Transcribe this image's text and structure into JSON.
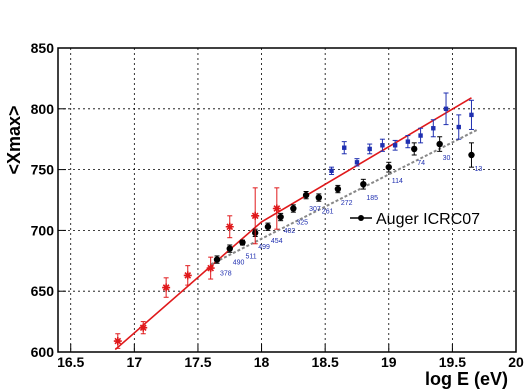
{
  "chart_data": {
    "type": "scatter",
    "xlabel": "log E (eV)",
    "ylabel": "<Xmax>",
    "xlim": [
      16.4,
      20.0
    ],
    "ylim": [
      600,
      850
    ],
    "x_ticks": [
      "16.5",
      "17",
      "17.5",
      "18",
      "18.5",
      "19",
      "19.5",
      "20"
    ],
    "y_ticks": [
      "600",
      "650",
      "700",
      "750",
      "800",
      "850"
    ],
    "grid": true,
    "legend_placement": "right",
    "colors": {
      "red": "#e0191b",
      "black": "#000000",
      "blue": "#1f2fb0",
      "grey": "#888888"
    },
    "series": [
      {
        "name": "Auger ICRC07",
        "color": "#000000",
        "marker": "circle",
        "legend": true,
        "points": [
          {
            "x": 17.65,
            "y": 676,
            "err": 3,
            "n": "378"
          },
          {
            "x": 17.75,
            "y": 685,
            "err": 3,
            "n": "490"
          },
          {
            "x": 17.85,
            "y": 690,
            "err": 2,
            "n": "511"
          },
          {
            "x": 17.95,
            "y": 698,
            "err": 3,
            "n": "499"
          },
          {
            "x": 18.05,
            "y": 703,
            "err": 3,
            "n": "454"
          },
          {
            "x": 18.15,
            "y": 711,
            "err": 3,
            "n": "402"
          },
          {
            "x": 18.25,
            "y": 718,
            "err": 3,
            "n": "325"
          },
          {
            "x": 18.35,
            "y": 729,
            "err": 3,
            "n": "307"
          },
          {
            "x": 18.45,
            "y": 727,
            "err": 3,
            "n": "261"
          },
          {
            "x": 18.6,
            "y": 734,
            "err": 3,
            "n": "272"
          },
          {
            "x": 18.8,
            "y": 738,
            "err": 4,
            "n": "185"
          },
          {
            "x": 19.0,
            "y": 752,
            "err": 4,
            "n": "114"
          },
          {
            "x": 19.2,
            "y": 767,
            "err": 5,
            "n": "74"
          },
          {
            "x": 19.4,
            "y": 771,
            "err": 6,
            "n": "30"
          },
          {
            "x": 19.65,
            "y": 762,
            "err": 10,
            "n": "13"
          }
        ]
      },
      {
        "name": "",
        "color": "#1f2fb0",
        "marker": "square",
        "legend": false,
        "points": [
          {
            "x": 18.55,
            "y": 749,
            "err": 3
          },
          {
            "x": 18.65,
            "y": 768,
            "err": 5
          },
          {
            "x": 18.75,
            "y": 756,
            "err": 3
          },
          {
            "x": 18.85,
            "y": 767,
            "err": 4
          },
          {
            "x": 18.95,
            "y": 770,
            "err": 5
          },
          {
            "x": 19.05,
            "y": 770,
            "err": 4
          },
          {
            "x": 19.15,
            "y": 773,
            "err": 5
          },
          {
            "x": 19.25,
            "y": 778,
            "err": 6
          },
          {
            "x": 19.35,
            "y": 784,
            "err": 7
          },
          {
            "x": 19.45,
            "y": 800,
            "err": 13
          },
          {
            "x": 19.55,
            "y": 785,
            "err": 10
          },
          {
            "x": 19.65,
            "y": 795,
            "err": 12
          }
        ]
      },
      {
        "name": "",
        "color": "#e0191b",
        "marker": "star",
        "legend": false,
        "points": [
          {
            "x": 16.87,
            "y": 609,
            "err": 6
          },
          {
            "x": 17.07,
            "y": 620,
            "err": 5
          },
          {
            "x": 17.25,
            "y": 653,
            "err": 8
          },
          {
            "x": 17.42,
            "y": 663,
            "err": 8
          },
          {
            "x": 17.6,
            "y": 669,
            "err": 9
          },
          {
            "x": 17.75,
            "y": 703,
            "err": 9
          },
          {
            "x": 17.95,
            "y": 712,
            "err": 23
          },
          {
            "x": 18.12,
            "y": 718,
            "err": 17
          }
        ]
      }
    ],
    "fits": [
      {
        "color": "#e0191b",
        "style": "solid",
        "points": [
          [
            16.85,
            602
          ],
          [
            18.0,
            707
          ],
          [
            19.65,
            809
          ]
        ]
      },
      {
        "color": "#888888",
        "style": "dashed",
        "points": [
          [
            17.6,
            672
          ],
          [
            19.7,
            783
          ]
        ]
      }
    ]
  }
}
